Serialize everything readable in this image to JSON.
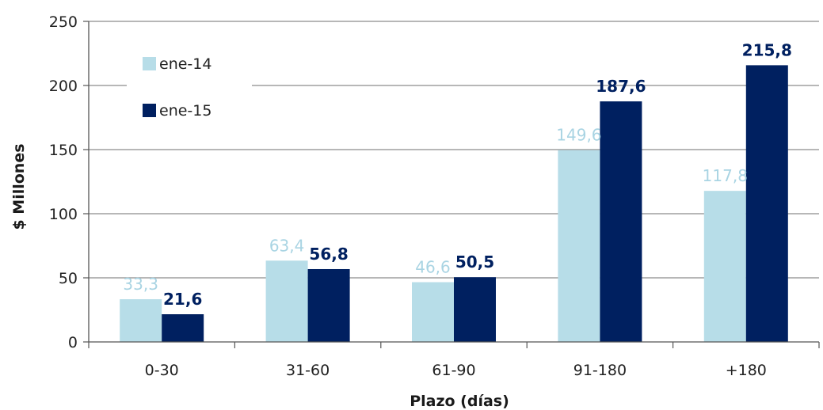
{
  "chart_data": {
    "type": "bar",
    "categories": [
      "0-30",
      "31-60",
      "61-90",
      "91-180",
      "+180"
    ],
    "series": [
      {
        "name": "ene-14",
        "values": [
          33.3,
          63.4,
          46.6,
          149.6,
          117.8
        ],
        "labels": [
          "33,3",
          "63,4",
          "46,6",
          "149,6",
          "117,8"
        ],
        "color": "#b7dde8"
      },
      {
        "name": "ene-15",
        "values": [
          21.6,
          56.8,
          50.5,
          187.6,
          215.8
        ],
        "labels": [
          "21,6",
          "56,8",
          "50,5",
          "187,6",
          "215,8"
        ],
        "color": "#002060"
      }
    ],
    "xlabel": "Plazo (días)",
    "ylabel": "$ Millones",
    "ylim": [
      0,
      250
    ],
    "yticks": [
      0,
      50,
      100,
      150,
      200,
      250
    ],
    "grid": true,
    "legend_position": "top-left"
  }
}
